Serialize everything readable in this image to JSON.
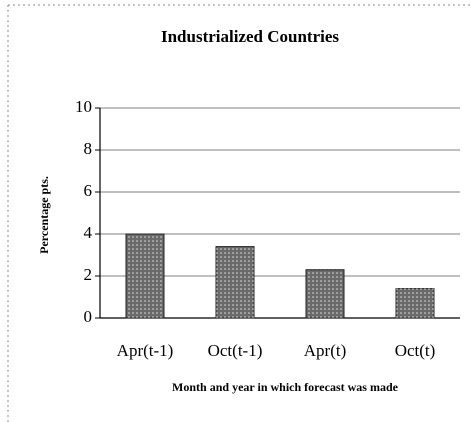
{
  "chart_data": {
    "type": "bar",
    "title": "Industrialized Countries",
    "y_label": "Percentage pts.",
    "x_label": "Month and year in which forecast was made",
    "categories": [
      "Apr(t-1)",
      "Oct(t-1)",
      "Apr(t)",
      "Oct(t)"
    ],
    "values": [
      4.0,
      3.4,
      2.3,
      1.4
    ],
    "color": "#6a6a6a",
    "ylim": [
      0,
      10
    ],
    "yticks": [
      0,
      2,
      4,
      6,
      8,
      10
    ],
    "grid": true
  }
}
